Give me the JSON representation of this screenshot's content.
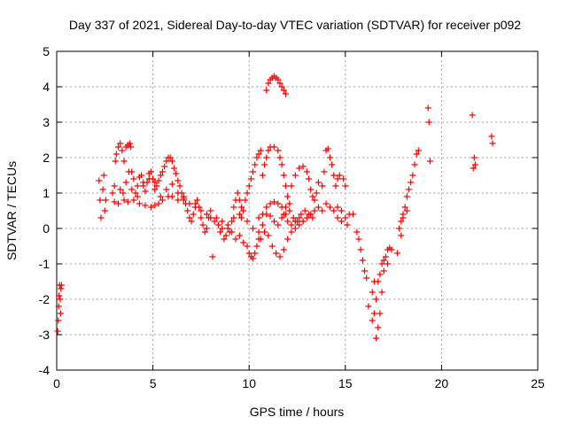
{
  "chart_data": {
    "type": "scatter",
    "title": "Day 337 of 2021, Sidereal Day-to-day VTEC variation (SDTVAR) for receiver p092",
    "xlabel": "GPS time / hours",
    "ylabel": "SDTVAR / TECUs",
    "xlim": [
      0,
      25
    ],
    "ylim": [
      -4,
      5
    ],
    "xticks": [
      "0",
      "5",
      "10",
      "15",
      "20",
      "25"
    ],
    "yticks": [
      "-4",
      "-3",
      "-2",
      "-1",
      "0",
      "1",
      "2",
      "3",
      "4",
      "5"
    ],
    "grid": true,
    "marker": "plus",
    "color": "#ff0000",
    "series": [
      {
        "name": "SDTVAR",
        "points": [
          [
            0.05,
            -2.9
          ],
          [
            0.08,
            -2.6
          ],
          [
            0.1,
            -2.2
          ],
          [
            0.12,
            -1.9
          ],
          [
            0.15,
            -1.6
          ],
          [
            0.18,
            -2.0
          ],
          [
            0.2,
            -2.4
          ],
          [
            0.22,
            -1.7
          ],
          [
            0.25,
            -1.6
          ],
          [
            2.2,
            1.35
          ],
          [
            2.25,
            0.8
          ],
          [
            2.3,
            0.3
          ],
          [
            2.4,
            1.1
          ],
          [
            2.45,
            1.5
          ],
          [
            2.5,
            0.5
          ],
          [
            2.55,
            0.8
          ],
          [
            2.9,
            1.0
          ],
          [
            3.0,
            1.2
          ],
          [
            3.05,
            1.9
          ],
          [
            3.1,
            2.1
          ],
          [
            3.2,
            2.3
          ],
          [
            3.3,
            2.4
          ],
          [
            3.4,
            2.2
          ],
          [
            3.45,
            1.0
          ],
          [
            3.5,
            1.9
          ],
          [
            3.6,
            2.3
          ],
          [
            3.7,
            2.35
          ],
          [
            3.75,
            1.6
          ],
          [
            3.8,
            2.4
          ],
          [
            3.85,
            2.3
          ],
          [
            3.9,
            1.6
          ],
          [
            4.0,
            1.4
          ],
          [
            4.1,
            1.0
          ],
          [
            4.2,
            1.2
          ],
          [
            4.3,
            1.45
          ],
          [
            4.4,
            1.5
          ],
          [
            4.5,
            1.3
          ],
          [
            4.6,
            1.05
          ],
          [
            4.7,
            1.3
          ],
          [
            4.8,
            1.55
          ],
          [
            4.9,
            1.6
          ],
          [
            5.0,
            1.4
          ],
          [
            5.1,
            1.3
          ],
          [
            5.2,
            1.2
          ],
          [
            5.3,
            1.35
          ],
          [
            5.4,
            1.5
          ],
          [
            5.5,
            1.6
          ],
          [
            5.6,
            1.75
          ],
          [
            5.7,
            1.9
          ],
          [
            5.8,
            2.0
          ],
          [
            5.9,
            2.0
          ],
          [
            6.0,
            1.9
          ],
          [
            6.1,
            1.7
          ],
          [
            6.2,
            1.55
          ],
          [
            6.3,
            1.35
          ],
          [
            6.4,
            1.2
          ],
          [
            6.5,
            1.0
          ],
          [
            6.6,
            0.9
          ],
          [
            6.7,
            0.7
          ],
          [
            6.8,
            0.5
          ],
          [
            6.9,
            0.3
          ],
          [
            7.0,
            0.2
          ],
          [
            7.1,
            0.4
          ],
          [
            7.2,
            0.7
          ],
          [
            7.3,
            0.8
          ],
          [
            7.4,
            0.6
          ],
          [
            7.5,
            0.3
          ],
          [
            7.6,
            0.1
          ],
          [
            7.7,
            -0.1
          ],
          [
            7.8,
            0.0
          ],
          [
            7.9,
            0.3
          ],
          [
            8.0,
            0.5
          ],
          [
            8.1,
            -0.8
          ],
          [
            3.0,
            0.75
          ],
          [
            3.2,
            0.7
          ],
          [
            3.5,
            0.8
          ],
          [
            3.7,
            0.75
          ],
          [
            4.0,
            0.8
          ],
          [
            4.3,
            0.7
          ],
          [
            4.6,
            0.65
          ],
          [
            4.9,
            0.6
          ],
          [
            5.1,
            0.65
          ],
          [
            5.3,
            0.7
          ],
          [
            5.5,
            0.8
          ],
          [
            5.8,
            0.9
          ],
          [
            6.0,
            0.9
          ],
          [
            6.3,
            0.8
          ],
          [
            6.6,
            0.8
          ],
          [
            6.9,
            0.7
          ],
          [
            7.2,
            0.6
          ],
          [
            7.5,
            0.5
          ],
          [
            7.8,
            0.4
          ],
          [
            8.0,
            0.3
          ],
          [
            8.3,
            0.3
          ],
          [
            8.6,
            0.2
          ],
          [
            8.9,
            0.1
          ],
          [
            9.2,
            0.3
          ],
          [
            9.5,
            0.4
          ],
          [
            3.3,
            1.1
          ],
          [
            3.6,
            1.3
          ],
          [
            3.9,
            1.1
          ],
          [
            4.2,
            0.9
          ],
          [
            4.5,
            1.2
          ],
          [
            4.8,
            1.4
          ],
          [
            5.1,
            1.1
          ],
          [
            5.4,
            0.9
          ],
          [
            5.7,
            1.1
          ],
          [
            6.0,
            1.25
          ],
          [
            6.3,
            1.0
          ],
          [
            6.6,
            0.85
          ],
          [
            8.2,
            0.2
          ],
          [
            8.4,
            0.1
          ],
          [
            8.6,
            0.0
          ],
          [
            8.8,
            -0.2
          ],
          [
            9.0,
            -0.1
          ],
          [
            9.1,
            0.2
          ],
          [
            9.2,
            0.6
          ],
          [
            9.3,
            0.8
          ],
          [
            9.4,
            1.0
          ],
          [
            9.5,
            0.8
          ],
          [
            9.6,
            0.6
          ],
          [
            9.7,
            0.5
          ],
          [
            9.8,
            0.8
          ],
          [
            9.9,
            1.0
          ],
          [
            10.0,
            1.2
          ],
          [
            10.1,
            1.4
          ],
          [
            10.2,
            1.6
          ],
          [
            10.3,
            1.8
          ],
          [
            10.4,
            2.0
          ],
          [
            10.5,
            2.1
          ],
          [
            10.6,
            2.2
          ],
          [
            8.5,
            -0.1
          ],
          [
            8.7,
            -0.3
          ],
          [
            8.9,
            0.0
          ],
          [
            9.1,
            -0.1
          ],
          [
            9.3,
            -0.3
          ],
          [
            9.5,
            -0.2
          ],
          [
            9.7,
            -0.4
          ],
          [
            9.9,
            -0.5
          ],
          [
            10.0,
            -0.7
          ],
          [
            10.1,
            -0.8
          ],
          [
            10.2,
            -0.85
          ],
          [
            10.3,
            -0.7
          ],
          [
            10.4,
            -0.5
          ],
          [
            10.5,
            -0.3
          ],
          [
            10.5,
            0.3
          ],
          [
            10.7,
            0.4
          ],
          [
            10.9,
            0.6
          ],
          [
            11.1,
            0.7
          ],
          [
            11.3,
            0.75
          ],
          [
            11.5,
            0.7
          ],
          [
            11.7,
            0.6
          ],
          [
            11.9,
            0.6
          ],
          [
            12.1,
            0.5
          ],
          [
            12.3,
            0.3
          ],
          [
            12.5,
            0.2
          ],
          [
            12.7,
            0.4
          ],
          [
            12.9,
            0.5
          ],
          [
            13.1,
            0.4
          ],
          [
            13.3,
            0.3
          ],
          [
            10.7,
            1.5
          ],
          [
            10.8,
            1.8
          ],
          [
            10.9,
            2.0
          ],
          [
            11.0,
            2.2
          ],
          [
            11.1,
            2.3
          ],
          [
            11.3,
            2.3
          ],
          [
            11.5,
            2.2
          ],
          [
            11.6,
            2.0
          ],
          [
            11.7,
            1.8
          ],
          [
            11.8,
            1.5
          ],
          [
            11.9,
            1.2
          ],
          [
            12.0,
            0.9
          ],
          [
            12.1,
            0.7
          ],
          [
            10.6,
            -0.3
          ],
          [
            10.8,
            -0.1
          ],
          [
            11.0,
            -0.2
          ],
          [
            11.2,
            -0.5
          ],
          [
            11.4,
            -0.7
          ],
          [
            11.6,
            -0.8
          ],
          [
            11.8,
            -0.6
          ],
          [
            12.0,
            -0.3
          ],
          [
            12.2,
            -0.1
          ],
          [
            12.4,
            0.0
          ],
          [
            12.6,
            0.1
          ],
          [
            12.8,
            0.2
          ],
          [
            9.6,
            0.3
          ],
          [
            9.9,
            0.2
          ],
          [
            10.2,
            0.0
          ],
          [
            10.5,
            -0.1
          ],
          [
            10.7,
            0.1
          ],
          [
            10.9,
            0.4
          ],
          [
            11.1,
            0.35
          ],
          [
            11.3,
            0.2
          ],
          [
            11.5,
            0.1
          ],
          [
            11.7,
            0.3
          ],
          [
            11.9,
            0.4
          ],
          [
            10.9,
            3.9
          ],
          [
            11.0,
            4.1
          ],
          [
            11.1,
            4.2
          ],
          [
            11.2,
            4.25
          ],
          [
            11.3,
            4.3
          ],
          [
            11.4,
            4.25
          ],
          [
            11.5,
            4.2
          ],
          [
            11.6,
            4.1
          ],
          [
            11.7,
            4.0
          ],
          [
            11.8,
            3.9
          ],
          [
            11.9,
            3.8
          ],
          [
            11.8,
            0.4
          ],
          [
            12.0,
            0.2
          ],
          [
            12.2,
            0.1
          ],
          [
            12.4,
            0.2
          ],
          [
            12.6,
            0.3
          ],
          [
            12.8,
            0.2
          ],
          [
            13.0,
            0.3
          ],
          [
            13.2,
            0.4
          ],
          [
            13.4,
            0.5
          ],
          [
            13.6,
            0.6
          ],
          [
            13.8,
            0.5
          ],
          [
            14.0,
            0.7
          ],
          [
            14.2,
            0.6
          ],
          [
            14.4,
            0.5
          ],
          [
            14.6,
            0.6
          ],
          [
            14.8,
            0.5
          ],
          [
            12.2,
            1.2
          ],
          [
            12.4,
            1.5
          ],
          [
            12.6,
            1.7
          ],
          [
            12.8,
            1.75
          ],
          [
            13.0,
            1.6
          ],
          [
            13.1,
            1.4
          ],
          [
            13.2,
            1.1
          ],
          [
            13.3,
            0.9
          ],
          [
            13.4,
            0.8
          ],
          [
            13.5,
            1.0
          ],
          [
            13.6,
            1.3
          ],
          [
            13.8,
            1.2
          ],
          [
            13.9,
            1.6
          ],
          [
            14.0,
            2.2
          ],
          [
            14.1,
            2.25
          ],
          [
            14.2,
            2.0
          ],
          [
            14.3,
            1.8
          ],
          [
            14.4,
            1.5
          ],
          [
            14.5,
            1.2
          ],
          [
            14.6,
            1.4
          ],
          [
            14.7,
            1.5
          ],
          [
            14.9,
            1.4
          ],
          [
            15.0,
            1.2
          ],
          [
            14.6,
            0.3
          ],
          [
            14.8,
            0.2
          ],
          [
            15.0,
            0.3
          ],
          [
            15.1,
            0.1
          ],
          [
            15.2,
            0.4
          ],
          [
            15.4,
            0.4
          ],
          [
            15.6,
            -0.1
          ],
          [
            15.7,
            -0.3
          ],
          [
            15.8,
            -0.6
          ],
          [
            15.9,
            -0.9
          ],
          [
            16.0,
            -1.2
          ],
          [
            16.1,
            -1.4
          ],
          [
            16.2,
            -2.2
          ],
          [
            16.4,
            -1.8
          ],
          [
            16.5,
            -1.5
          ],
          [
            16.6,
            -3.1
          ],
          [
            16.7,
            -2.8
          ],
          [
            16.8,
            -2.4
          ],
          [
            16.9,
            -1.8
          ],
          [
            17.0,
            -1.2
          ],
          [
            17.1,
            -0.8
          ],
          [
            17.2,
            -0.6
          ],
          [
            17.3,
            -0.55
          ],
          [
            17.4,
            -0.6
          ],
          [
            16.4,
            -2.6
          ],
          [
            16.5,
            -2.4
          ],
          [
            16.6,
            -2.0
          ],
          [
            16.7,
            -1.5
          ],
          [
            16.8,
            -1.3
          ],
          [
            16.9,
            -1.0
          ],
          [
            17.0,
            -0.9
          ],
          [
            17.2,
            -1.0
          ],
          [
            17.8,
            0.0
          ],
          [
            17.9,
            0.2
          ],
          [
            18.0,
            0.4
          ],
          [
            18.1,
            0.6
          ],
          [
            18.2,
            0.9
          ],
          [
            18.3,
            1.1
          ],
          [
            18.4,
            1.3
          ],
          [
            18.5,
            1.5
          ],
          [
            18.6,
            1.8
          ],
          [
            18.7,
            2.1
          ],
          [
            18.8,
            2.2
          ],
          [
            17.7,
            -0.7
          ],
          [
            17.9,
            -0.2
          ],
          [
            18.0,
            0.3
          ],
          [
            18.2,
            0.5
          ],
          [
            19.3,
            3.4
          ],
          [
            19.35,
            3.0
          ],
          [
            19.4,
            1.9
          ],
          [
            21.6,
            3.2
          ],
          [
            21.65,
            1.7
          ],
          [
            21.7,
            2.0
          ],
          [
            21.75,
            1.8
          ],
          [
            22.6,
            2.6
          ],
          [
            22.65,
            2.4
          ]
        ]
      }
    ]
  }
}
